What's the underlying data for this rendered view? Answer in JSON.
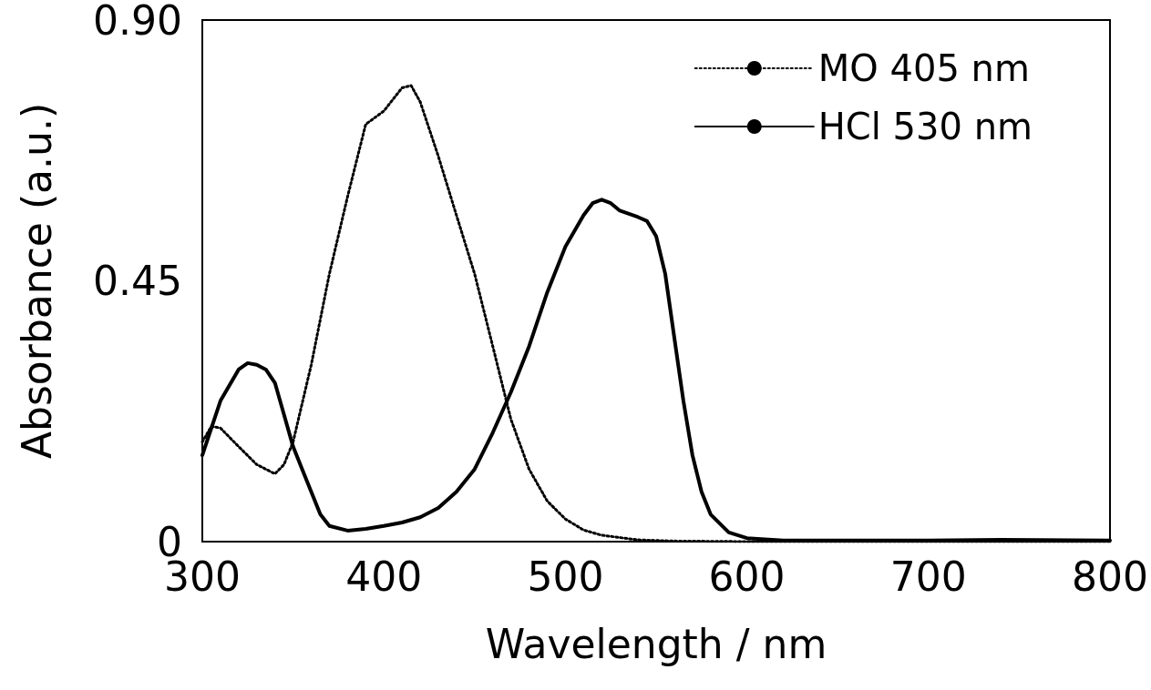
{
  "chart_data": {
    "type": "line",
    "xlabel": "Wavelength / nm",
    "ylabel": "Absorbance (a.u.)",
    "xlim": [
      300,
      800
    ],
    "xticks": [
      300,
      400,
      500,
      600,
      700,
      800
    ],
    "ylim": [
      0,
      0.9
    ],
    "yticks": [
      0,
      0.45,
      {
        "value": 0.9,
        "label": "0.90"
      }
    ],
    "grid": false,
    "legend": "top right",
    "marker": "none",
    "series": [
      {
        "name": "MO 405 nm",
        "color": "#000000",
        "line_style": "dotted",
        "x": [
          300,
          305,
          310,
          320,
          330,
          340,
          345,
          350,
          360,
          370,
          380,
          390,
          400,
          410,
          415,
          420,
          430,
          440,
          450,
          460,
          470,
          480,
          490,
          500,
          510,
          520,
          540,
          560,
          600,
          700,
          800
        ],
        "values": [
          0.172,
          0.199,
          0.196,
          0.164,
          0.133,
          0.117,
          0.133,
          0.172,
          0.305,
          0.462,
          0.595,
          0.72,
          0.743,
          0.783,
          0.787,
          0.759,
          0.665,
          0.563,
          0.462,
          0.337,
          0.211,
          0.125,
          0.07,
          0.039,
          0.02,
          0.011,
          0.003,
          0.001,
          0,
          0,
          0
        ]
      },
      {
        "name": "HCl 530 nm",
        "color": "#000000",
        "line_style": "solid",
        "x": [
          300,
          310,
          320,
          325,
          330,
          335,
          340,
          345,
          350,
          355,
          360,
          365,
          370,
          380,
          390,
          400,
          410,
          420,
          430,
          440,
          450,
          460,
          470,
          480,
          490,
          500,
          510,
          515,
          520,
          525,
          530,
          540,
          545,
          550,
          555,
          560,
          565,
          570,
          575,
          580,
          590,
          600,
          620,
          700,
          740,
          800
        ],
        "values": [
          0.149,
          0.243,
          0.297,
          0.308,
          0.305,
          0.297,
          0.274,
          0.219,
          0.164,
          0.125,
          0.086,
          0.047,
          0.027,
          0.019,
          0.022,
          0.027,
          0.033,
          0.042,
          0.058,
          0.086,
          0.125,
          0.188,
          0.258,
          0.337,
          0.43,
          0.509,
          0.563,
          0.584,
          0.59,
          0.584,
          0.571,
          0.56,
          0.553,
          0.527,
          0.462,
          0.352,
          0.243,
          0.149,
          0.086,
          0.047,
          0.016,
          0.006,
          0.002,
          0.002,
          0.003,
          0.002
        ]
      }
    ]
  }
}
